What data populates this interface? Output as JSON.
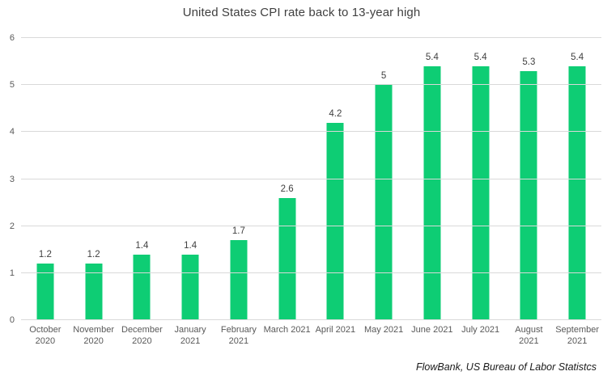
{
  "page": {
    "title": "United States CPI rate back to 13-year high",
    "source_note": "FlowBank, US Bureau of Labor Statistcs"
  },
  "chart_data": {
    "type": "bar",
    "title": "United States CPI rate back to 13-year high",
    "categories": [
      "October 2020",
      "November 2020",
      "December 2020",
      "January 2021",
      "February 2021",
      "March 2021",
      "April 2021",
      "May 2021",
      "June 2021",
      "July 2021",
      "August 2021",
      "September 2021"
    ],
    "category_tick_labels": [
      "October\n2020",
      "November\n2020",
      "December\n2020",
      "January\n2021",
      "February\n2021",
      "March 2021",
      "April 2021",
      "May 2021",
      "June 2021",
      "July 2021",
      "August\n2021",
      "September\n2021"
    ],
    "values": [
      1.2,
      1.2,
      1.4,
      1.4,
      1.7,
      2.6,
      4.2,
      5,
      5.4,
      5.4,
      5.3,
      5.4
    ],
    "value_labels": [
      "1.2",
      "1.2",
      "1.4",
      "1.4",
      "1.7",
      "2.6",
      "4.2",
      "5",
      "5.4",
      "5.4",
      "5.3",
      "5.4"
    ],
    "xlabel": "",
    "ylabel": "",
    "ylim": [
      0,
      6
    ],
    "yticks": [
      0,
      1,
      2,
      3,
      4,
      5,
      6
    ],
    "grid": "horizontal",
    "legend": "none",
    "source": "FlowBank, US Bureau of Labor Statistcs"
  },
  "colors": {
    "bar": "#0ecd74",
    "gridline": "#d9d9d9",
    "axis_text": "#595959",
    "title_text": "#404040",
    "value_label_text": "#404040",
    "source_text": "#1a1a1a",
    "background": "#ffffff"
  }
}
